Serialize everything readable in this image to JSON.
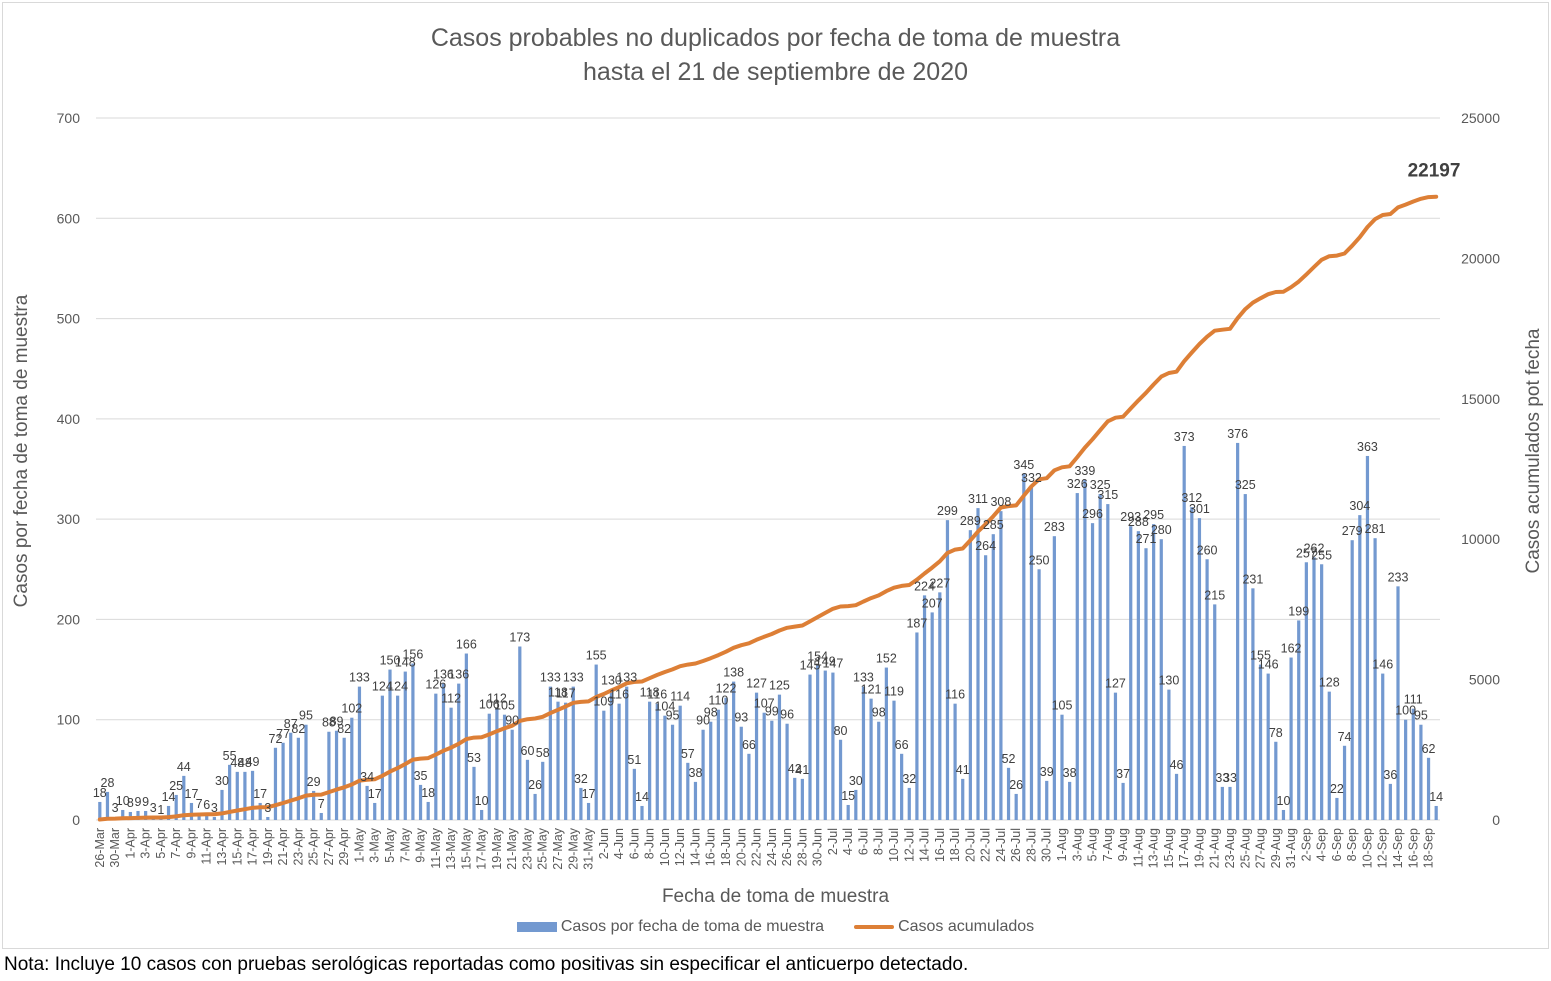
{
  "chart_data": {
    "type": "bar+line",
    "title": "Casos probables no duplicados por fecha de toma de muestra",
    "subtitle": "hasta el  21 de septiembre de 2020",
    "xlabel": "Fecha de toma de muestra",
    "ylabel_left": "Casos por fecha de toma de muestra",
    "ylabel_right": "Casos acumulados pot fecha",
    "ylim_left": [
      0,
      700
    ],
    "ylim_right": [
      0,
      25000
    ],
    "yticks_left": [
      "0",
      "100",
      "200",
      "300",
      "400",
      "500",
      "600",
      "700"
    ],
    "yticks_right": [
      "0",
      "5000",
      "10000",
      "15000",
      "20000",
      "25000"
    ],
    "grid": true,
    "legend_position": "bottom",
    "colors": {
      "bars": "#7399d0",
      "line": "#dd7f36"
    },
    "x_tick_labels": [
      "26-Mar",
      "30-Mar",
      "1-Apr",
      "3-Apr",
      "5-Apr",
      "7-Apr",
      "9-Apr",
      "11-Apr",
      "13-Apr",
      "15-Apr",
      "17-Apr",
      "19-Apr",
      "21-Apr",
      "23-Apr",
      "25-Apr",
      "27-Apr",
      "29-Apr",
      "1-May",
      "3-May",
      "5-May",
      "7-May",
      "9-May",
      "11-May",
      "13-May",
      "15-May",
      "17-May",
      "19-May",
      "21-May",
      "23-May",
      "25-May",
      "27-May",
      "29-May",
      "31-May",
      "2-Jun",
      "4-Jun",
      "6-Jun",
      "8-Jun",
      "10-Jun",
      "12-Jun",
      "14-Jun",
      "16-Jun",
      "18-Jun",
      "20-Jun",
      "22-Jun",
      "24-Jun",
      "26-Jun",
      "28-Jun",
      "30-Jun",
      "2-Jul",
      "4-Jul",
      "6-Jul",
      "8-Jul",
      "10-Jul",
      "12-Jul",
      "14-Jul",
      "16-Jul",
      "18-Jul",
      "20-Jul",
      "22-Jul",
      "24-Jul",
      "26-Jul",
      "28-Jul",
      "30-Jul",
      "1-Aug",
      "3-Aug",
      "5-Aug",
      "7-Aug",
      "9-Aug",
      "11-Aug",
      "13-Aug",
      "15-Aug",
      "17-Aug",
      "19-Aug",
      "21-Aug",
      "23-Aug",
      "25-Aug",
      "27-Aug",
      "29-Aug",
      "31-Aug",
      "2-Sep",
      "4-Sep",
      "6-Sep",
      "8-Sep",
      "10-Sep",
      "12-Sep",
      "14-Sep",
      "16-Sep",
      "18-Sep"
    ],
    "series": [
      {
        "name": "Casos por fecha de toma de muestra",
        "type": "bar",
        "axis": "left",
        "values": [
          18,
          28,
          3,
          10,
          8,
          9,
          9,
          3,
          1,
          14,
          25,
          44,
          17,
          7,
          6,
          3,
          30,
          55,
          48,
          48,
          49,
          17,
          3,
          72,
          77,
          87,
          82,
          95,
          29,
          7,
          88,
          89,
          82,
          102,
          133,
          34,
          17,
          124,
          150,
          124,
          148,
          156,
          35,
          18,
          126,
          136,
          112,
          136,
          166,
          53,
          10,
          106,
          112,
          105,
          90,
          173,
          60,
          26,
          58,
          133,
          118,
          117,
          133,
          32,
          17,
          155,
          109,
          130,
          116,
          133,
          51,
          14,
          118,
          116,
          104,
          95,
          114,
          57,
          38,
          90,
          98,
          110,
          122,
          138,
          93,
          66,
          127,
          107,
          99,
          125,
          96,
          42,
          41,
          145,
          154,
          149,
          147,
          80,
          15,
          30,
          133,
          121,
          98,
          152,
          119,
          66,
          32,
          187,
          224,
          207,
          227,
          299,
          116,
          41,
          289,
          311,
          264,
          285,
          308,
          52,
          26,
          345,
          332,
          250,
          39,
          283,
          105,
          38,
          326,
          339,
          296,
          325,
          315,
          127,
          37,
          293,
          288,
          271,
          295,
          280,
          130,
          46,
          373,
          312,
          301,
          260,
          215,
          33,
          33,
          376,
          325,
          231,
          155,
          146,
          78,
          10,
          162,
          199,
          257,
          262,
          255,
          128,
          22,
          74,
          279,
          304,
          363,
          281,
          146,
          36,
          233,
          100,
          111,
          95,
          62,
          14
        ]
      },
      {
        "name": "Casos acumulados",
        "type": "line",
        "axis": "right",
        "note": "cumulative sum of daily cases (with initial offset), final value 22197",
        "final_value_label": "22197"
      }
    ]
  },
  "legend": {
    "bar_label": "Casos por fecha de toma de muestra",
    "line_label": "Casos acumulados"
  },
  "footnote": "Nota: Incluye 10 casos con pruebas serológicas reportadas como positivas sin especificar el anticuerpo detectado."
}
